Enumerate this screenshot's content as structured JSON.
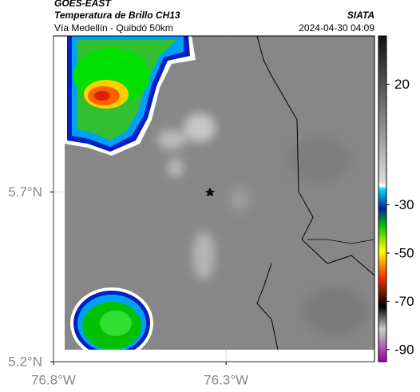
{
  "header": {
    "satellite": "GOES-EAST",
    "product": "Temperatura de Brillo CH13",
    "organization": "SIATA",
    "route": "Vía Medellín - Quibdó 50km",
    "timestamp": "2024-04-30 04:09"
  },
  "map": {
    "xlim": [
      -76.8,
      -75.87
    ],
    "ylim": [
      5.2,
      6.16
    ],
    "xticks": [
      {
        "value": -76.8,
        "label": "76.8°W"
      },
      {
        "value": -76.3,
        "label": "76.3°W"
      }
    ],
    "yticks": [
      {
        "value": 5.7,
        "label": "5.7°N"
      },
      {
        "value": 5.2,
        "label": "5.2°N"
      }
    ]
  },
  "colorbar": {
    "lim": [
      -95,
      40
    ],
    "ticks": [
      20,
      -30,
      -50,
      -70,
      -90
    ]
  }
}
